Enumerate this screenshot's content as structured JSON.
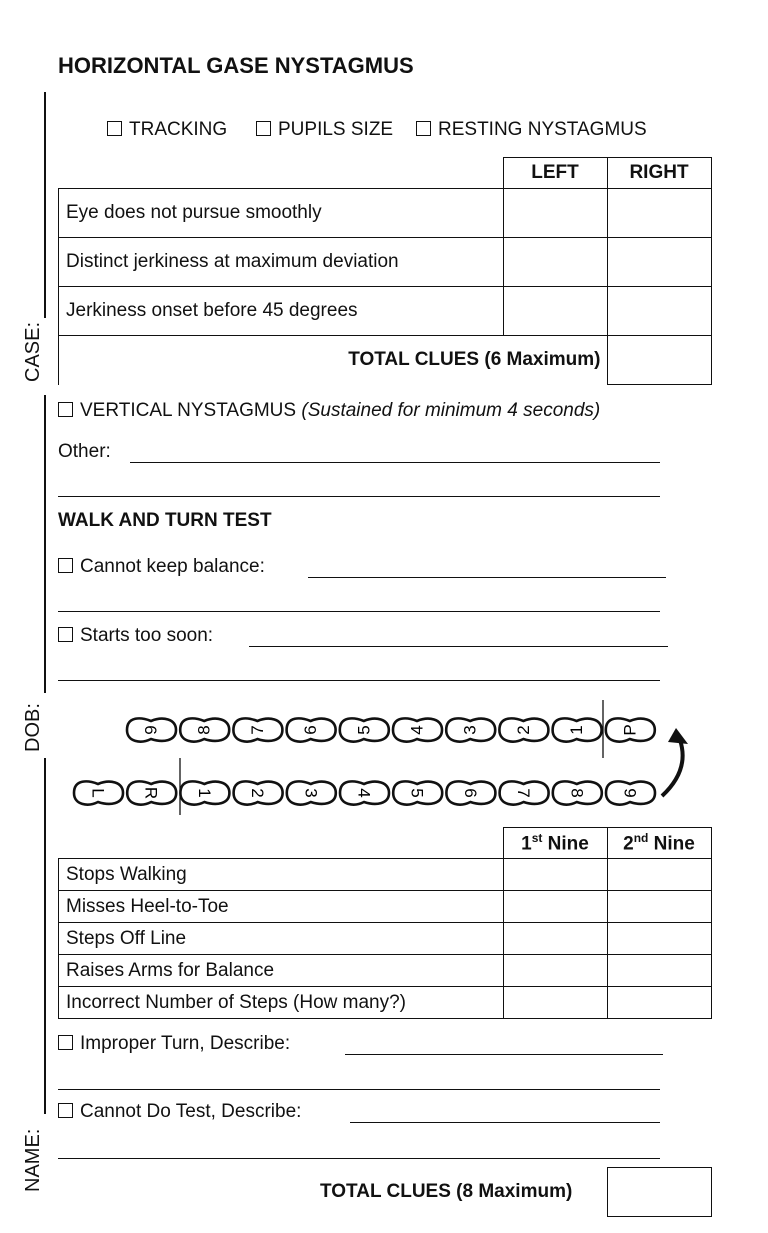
{
  "title": "HORIZONTAL GASE NYSTAGMUS",
  "margin_labels": {
    "case": "CASE:",
    "dob": "DOB:",
    "name": "NAME:"
  },
  "hgn_checks": [
    "TRACKING",
    "PUPILS SIZE",
    "RESTING NYSTAGMUS"
  ],
  "hgn_table": {
    "headers": [
      "LEFT",
      "RIGHT"
    ],
    "rows": [
      "Eye does not pursue smoothly",
      "Distinct jerkiness at maximum deviation",
      "Jerkiness onset before 45 degrees"
    ],
    "total_label": "TOTAL CLUES (6 Maximum)"
  },
  "vertical": {
    "label": "VERTICAL NYSTAGMUS",
    "note": "(Sustained for minimum 4 seconds)"
  },
  "other_label": "Other:",
  "walk_turn": {
    "heading": "WALK AND TURN TEST",
    "checks": [
      "Cannot keep balance:",
      "Starts too soon:"
    ],
    "footprints_top": [
      "9",
      "8",
      "7",
      "6",
      "5",
      "4",
      "3",
      "2",
      "1",
      "P"
    ],
    "footprints_bottom": [
      "L",
      "R",
      "1",
      "2",
      "3",
      "4",
      "5",
      "6",
      "7",
      "8",
      "9"
    ],
    "table": {
      "headers": [
        {
          "num": "1",
          "sup": "st",
          "word": " Nine"
        },
        {
          "num": "2",
          "sup": "nd",
          "word": " Nine"
        }
      ],
      "rows": [
        "Stops Walking",
        "Misses Heel-to-Toe",
        "Steps Off Line",
        "Raises Arms for Balance",
        "Incorrect Number of Steps (How many?)"
      ]
    },
    "checks_after": [
      "Improper Turn, Describe:",
      "Cannot Do Test, Describe:"
    ],
    "total_label": "TOTAL CLUES (8 Maximum)"
  }
}
